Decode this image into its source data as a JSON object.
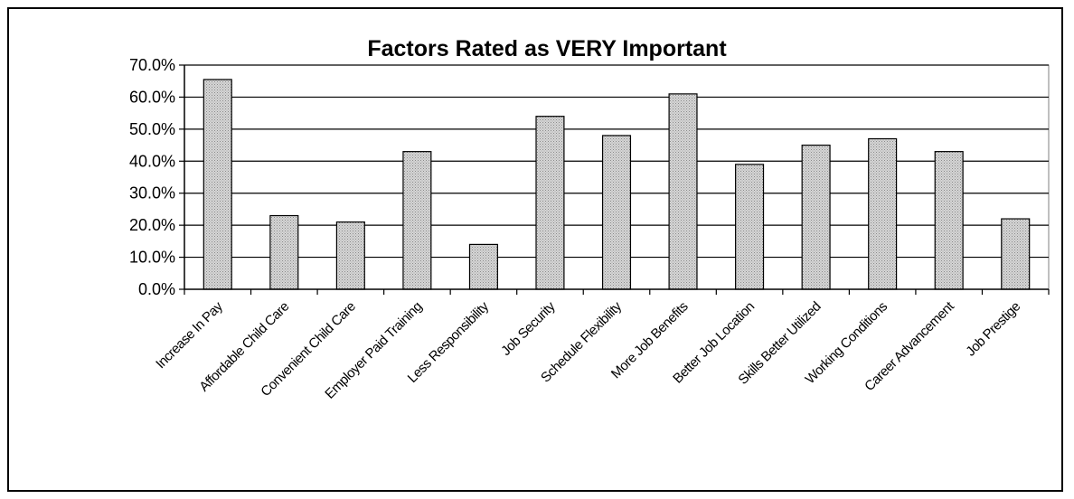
{
  "chart_data": {
    "type": "bar",
    "title": "Factors Rated as VERY Important",
    "xlabel": "",
    "ylabel": "",
    "ylim": [
      0,
      70
    ],
    "yticks": [
      "0.0%",
      "10.0%",
      "20.0%",
      "30.0%",
      "40.0%",
      "50.0%",
      "60.0%",
      "70.0%"
    ],
    "categories": [
      "Increase In Pay",
      "Affordable Child Care",
      "Convenient Child Care",
      "Employer Paid Training",
      "Less Responsibility",
      "Job Security",
      "Schedule Flexibility",
      "More Job Benefits",
      "Better Job Location",
      "Skills Better Utilized",
      "Working Conditions",
      "Career Advancement",
      "Job Prestige"
    ],
    "values": [
      65.5,
      23,
      21,
      43,
      14,
      54,
      48,
      61,
      39,
      45,
      47,
      43,
      22
    ],
    "grid": true,
    "legend": "none",
    "colors": {
      "bar_fill": "#c8c8c8",
      "bar_stroke": "#000000",
      "gridline": "#000000"
    }
  }
}
